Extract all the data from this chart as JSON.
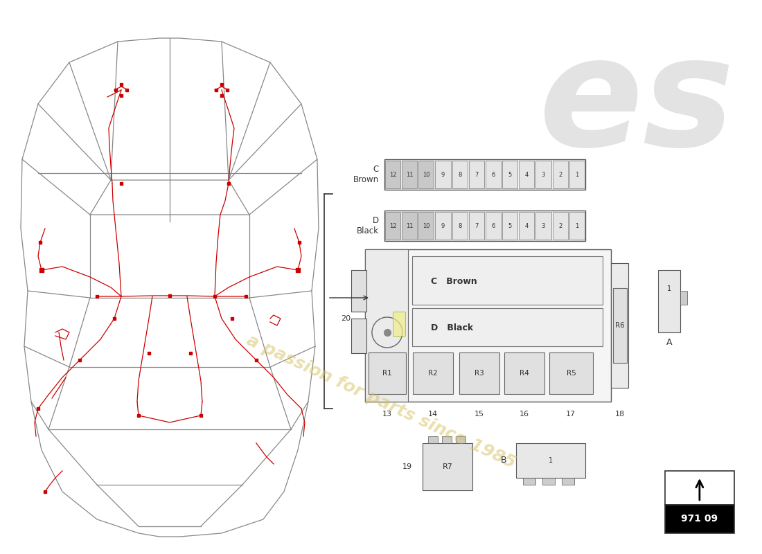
{
  "bg_color": "#ffffff",
  "watermark_text": "a passion for parts since 1985",
  "page_number": "971 09",
  "line_color": "#333333",
  "red_wire_color": "#cc0000",
  "car_line_color": "#888888",
  "fuse_border_color": "#555555",
  "fuse_bg_color": "#f0f0f0",
  "fuse_cell_color": "#e8e8e8",
  "fuse_dark_color": "#c8c8c8",
  "relay_color": "#e2e2e2",
  "box_bg_color": "#f5f5f5",
  "c_brown_label": "C\nBrown",
  "d_black_label": "D\nBlack",
  "c_brown_inner": "C   Brown",
  "d_black_inner": "D   Black",
  "fuse_count": 12
}
